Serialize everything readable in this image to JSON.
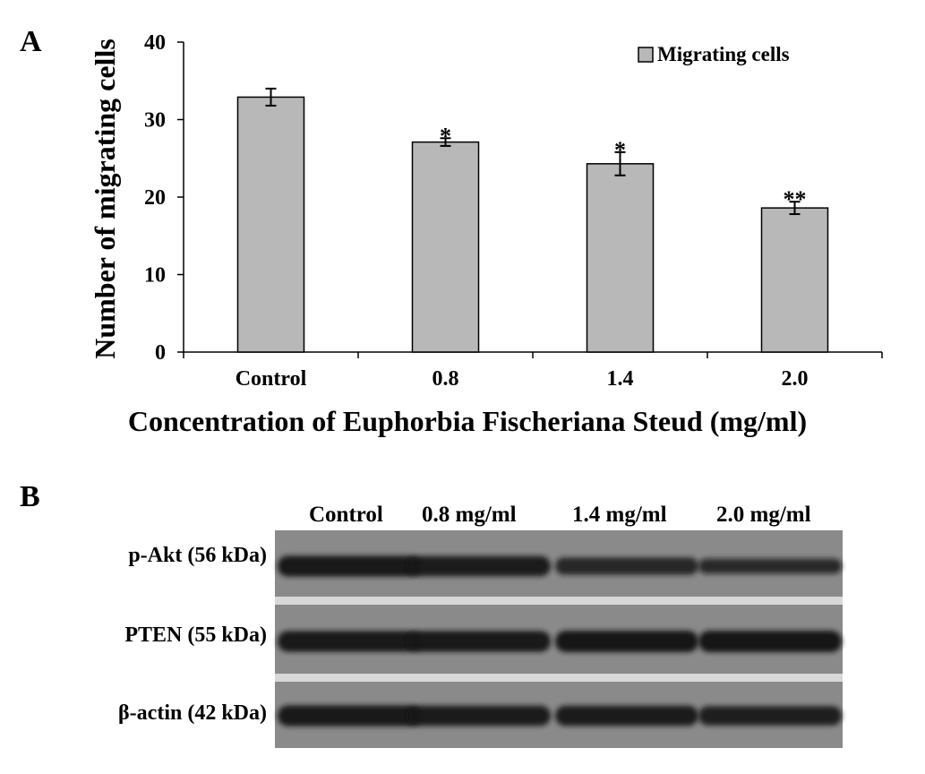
{
  "panel_a": {
    "letter": "A"
  },
  "panel_b": {
    "letter": "B",
    "lanes": [
      "Control",
      "0.8 mg/ml",
      "1.4 mg/ml",
      "2.0 mg/ml"
    ],
    "bands": [
      {
        "label": "p-Akt (56 kDa)",
        "intensities": [
          0.95,
          0.9,
          0.7,
          0.55
        ]
      },
      {
        "label": "PTEN (55 kDa)",
        "intensities": [
          0.95,
          0.95,
          1.0,
          1.0
        ]
      },
      {
        "label": "β-actin (42 kDa)",
        "intensities": [
          0.95,
          0.9,
          0.9,
          0.85
        ]
      }
    ],
    "colors": {
      "membrane": "#8a8a8a",
      "separator": "#d8d8d8",
      "band": "#141414"
    }
  },
  "chart_data": {
    "type": "bar",
    "categories": [
      "Control",
      "0.8",
      "1.4",
      "2.0"
    ],
    "series": [
      {
        "name": "Migrating cells",
        "values": [
          32.9,
          27.1,
          24.3,
          18.6
        ],
        "errors": [
          1.1,
          0.5,
          1.5,
          0.8
        ]
      }
    ],
    "annotations": [
      "",
      "*",
      "*",
      "**"
    ],
    "xlabel": "Concentration of Euphorbia Fischeriana Steud (mg/ml)",
    "ylabel": "Number of migrating cells",
    "ylim": [
      0,
      40
    ],
    "yticks": [
      0,
      10,
      20,
      30,
      40
    ],
    "grid": false,
    "legend_position": "top-right",
    "colors": {
      "bar": "#b8b8b8",
      "bar_stroke": "#000000"
    }
  }
}
